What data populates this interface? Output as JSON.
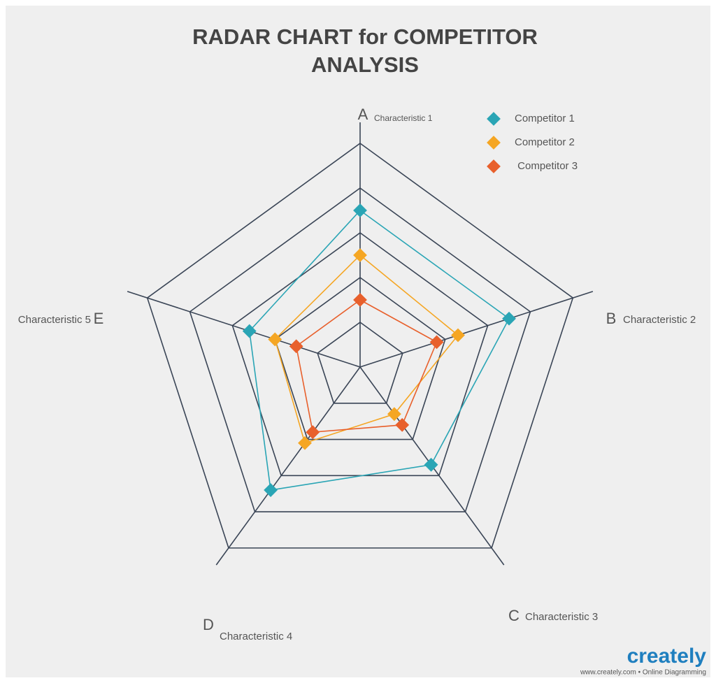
{
  "chart_data": {
    "type": "radar",
    "title": "RADAR CHART for COMPETITOR",
    "subtitle": "ANALYSIS",
    "axis_letters": [
      "A",
      "B",
      "C",
      "D",
      "E"
    ],
    "categories": [
      "Characteristic 1",
      "Characteristic 2",
      "Characteristic 3",
      "Characteristic 4",
      "Characteristic 5"
    ],
    "rlim": [
      0,
      5
    ],
    "rticks": [
      1,
      2,
      3,
      4,
      5
    ],
    "grid": true,
    "legend": "top-right",
    "series": [
      {
        "name": "Competitor 1",
        "color": "#2aa5b5",
        "values": [
          3.5,
          3.5,
          2.7,
          3.4,
          2.6
        ]
      },
      {
        "name": "Competitor 2",
        "color": "#f5a623",
        "values": [
          2.5,
          2.3,
          1.3,
          2.1,
          2.0
        ]
      },
      {
        "name": " Competitor 3",
        "color": "#e8602c",
        "values": [
          1.5,
          1.8,
          1.6,
          1.8,
          1.5
        ]
      }
    ]
  },
  "footer": {
    "brand": "creately",
    "tagline": "www.creately.com • Online Diagramming"
  }
}
